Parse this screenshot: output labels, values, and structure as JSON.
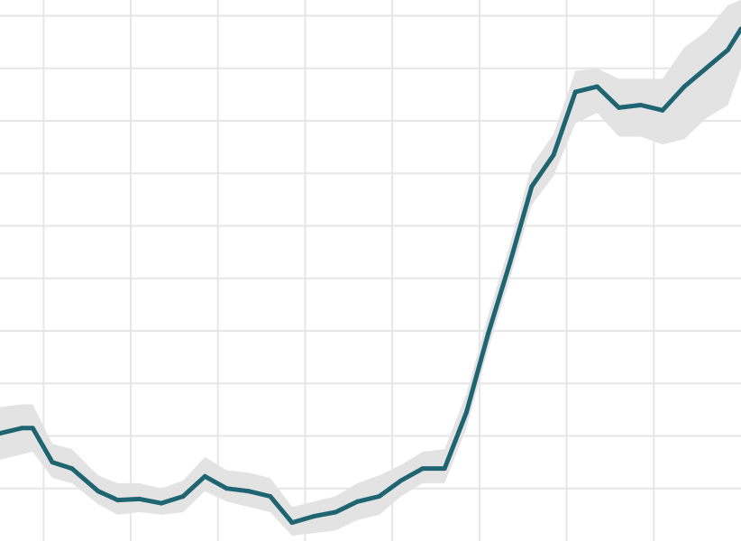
{
  "chart_data": {
    "type": "line",
    "title": "",
    "xlabel": "",
    "ylabel": "",
    "xlim": [
      0,
      34
    ],
    "ylim": [
      0,
      10.3
    ],
    "grid": true,
    "x_gridlines": [
      2,
      6,
      10,
      14,
      18,
      22,
      26,
      30
    ],
    "y_gridlines": [
      1,
      2,
      3,
      4,
      5,
      6,
      7,
      8,
      9,
      10
    ],
    "series": [
      {
        "values": [
          {
            "x": 0,
            "y": 2.05,
            "lower": 1.55,
            "upper": 2.55
          },
          {
            "x": 1,
            "y": 2.15,
            "lower": 1.65,
            "upper": 2.6
          },
          {
            "x": 1.5,
            "y": 2.15,
            "lower": 1.7,
            "upper": 2.6
          },
          {
            "x": 2.4,
            "y": 1.5,
            "lower": 1.2,
            "upper": 1.85
          },
          {
            "x": 3.3,
            "y": 1.38,
            "lower": 1.1,
            "upper": 1.75
          },
          {
            "x": 4.5,
            "y": 0.95,
            "lower": 0.7,
            "upper": 1.25
          },
          {
            "x": 5.4,
            "y": 0.78,
            "lower": 0.5,
            "upper": 1.1
          },
          {
            "x": 6.4,
            "y": 0.8,
            "lower": 0.55,
            "upper": 1.1
          },
          {
            "x": 7.4,
            "y": 0.72,
            "lower": 0.5,
            "upper": 1.0
          },
          {
            "x": 8.4,
            "y": 0.85,
            "lower": 0.55,
            "upper": 1.15
          },
          {
            "x": 9.4,
            "y": 1.23,
            "lower": 0.95,
            "upper": 1.6
          },
          {
            "x": 10.4,
            "y": 1.0,
            "lower": 0.75,
            "upper": 1.35
          },
          {
            "x": 11.4,
            "y": 0.95,
            "lower": 0.65,
            "upper": 1.3
          },
          {
            "x": 12.4,
            "y": 0.85,
            "lower": 0.55,
            "upper": 1.2
          },
          {
            "x": 13.4,
            "y": 0.35,
            "lower": 0.1,
            "upper": 0.65
          },
          {
            "x": 14.4,
            "y": 0.47,
            "lower": 0.15,
            "upper": 0.75
          },
          {
            "x": 15.4,
            "y": 0.55,
            "lower": 0.2,
            "upper": 0.85
          },
          {
            "x": 16.4,
            "y": 0.75,
            "lower": 0.4,
            "upper": 1.1
          },
          {
            "x": 17.4,
            "y": 0.85,
            "lower": 0.5,
            "upper": 1.25
          },
          {
            "x": 18.4,
            "y": 1.15,
            "lower": 0.85,
            "upper": 1.45
          },
          {
            "x": 19.4,
            "y": 1.38,
            "lower": 1.1,
            "upper": 1.7
          },
          {
            "x": 20.4,
            "y": 1.38,
            "lower": 1.1,
            "upper": 1.75
          },
          {
            "x": 21.4,
            "y": 2.45,
            "lower": 2.15,
            "upper": 2.8
          },
          {
            "x": 22.4,
            "y": 3.95,
            "lower": 3.65,
            "upper": 4.3
          },
          {
            "x": 23.4,
            "y": 5.3,
            "lower": 5.0,
            "upper": 5.65
          },
          {
            "x": 24.4,
            "y": 6.75,
            "lower": 6.4,
            "upper": 7.15
          },
          {
            "x": 25.4,
            "y": 7.35,
            "lower": 6.95,
            "upper": 7.75
          },
          {
            "x": 26.4,
            "y": 8.55,
            "lower": 7.95,
            "upper": 8.95
          },
          {
            "x": 27.4,
            "y": 8.65,
            "lower": 8.15,
            "upper": 9.0
          },
          {
            "x": 28.4,
            "y": 8.25,
            "lower": 7.7,
            "upper": 8.8
          },
          {
            "x": 29.4,
            "y": 8.3,
            "lower": 7.7,
            "upper": 8.8
          },
          {
            "x": 30.4,
            "y": 8.2,
            "lower": 7.55,
            "upper": 8.8
          },
          {
            "x": 31.4,
            "y": 8.65,
            "lower": 7.65,
            "upper": 9.4
          },
          {
            "x": 32.4,
            "y": 9.0,
            "lower": 8.05,
            "upper": 9.7
          },
          {
            "x": 33.4,
            "y": 9.35,
            "lower": 8.3,
            "upper": 10.2
          },
          {
            "x": 34,
            "y": 9.75,
            "lower": 9.0,
            "upper": 10.3
          }
        ]
      }
    ],
    "colors": {
      "line": "#1f6571",
      "band": "#e3e3e3",
      "grid": "#e6e6e6",
      "background": "#ffffff"
    }
  }
}
